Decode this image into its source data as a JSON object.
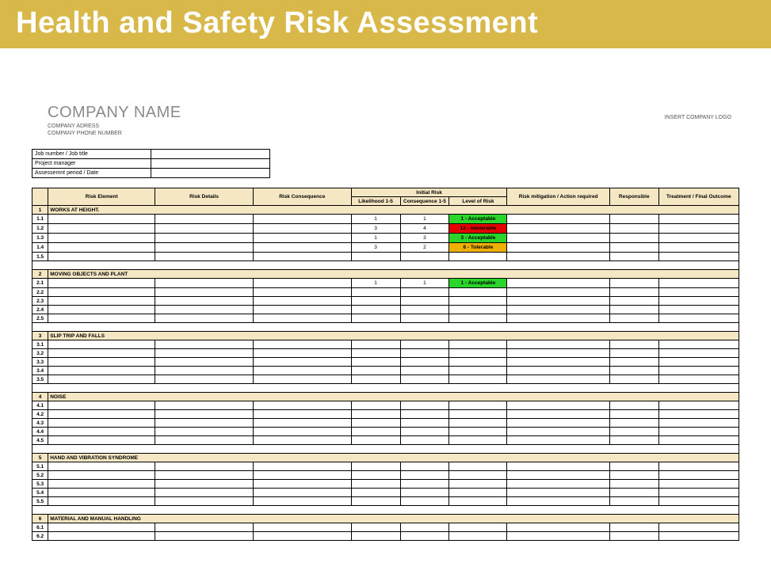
{
  "banner": "Health and Safety Risk Assessment",
  "company": {
    "name": "COMPANY NAME",
    "address": "COMPANY ADRESS",
    "phone": "COMPANY PHONE NUMBER"
  },
  "logo_hint": "INSERT COMPANY LOGO",
  "meta_rows": [
    {
      "label": "Job number / Job title",
      "value": ""
    },
    {
      "label": "Project manager",
      "value": ""
    },
    {
      "label": "Assessemnt period / Date",
      "value": ""
    }
  ],
  "header": {
    "num": "",
    "risk_element": "Risk Element",
    "risk_details": "Risk Details",
    "risk_consequence": "Risk Consequence",
    "initial_risk": "Initial Risk",
    "likelihood": "Likelihood 1-5",
    "consequence": "Consequence 1-5",
    "level": "Level of Risk",
    "mitigation": "Risk mitigation / Action required",
    "responsible": "Responsible",
    "outcome": "Treatment / Final Outcome"
  },
  "risk_levels": {
    "acceptable": {
      "label": "1 - Acceptable",
      "bg": "#2bd52b",
      "fg": "#000000"
    },
    "intolerable": {
      "label": "12 - Intolerable",
      "bg": "#e60000",
      "fg": "#000000"
    },
    "acceptable3": {
      "label": "3 - Acceptable",
      "bg": "#2bd52b",
      "fg": "#000000"
    },
    "tolerable6": {
      "label": "6 - Tolerable",
      "bg": "#f0b000",
      "fg": "#000000"
    }
  },
  "sections": [
    {
      "num": "1",
      "title": "WORKS AT HEIGHT.",
      "rows": [
        {
          "n": "1.1",
          "lk": "1",
          "cq": "1",
          "lvl": "acceptable"
        },
        {
          "n": "1.2",
          "lk": "3",
          "cq": "4",
          "lvl": "intolerable"
        },
        {
          "n": "1.3",
          "lk": "1",
          "cq": "3",
          "lvl": "acceptable3"
        },
        {
          "n": "1.4",
          "lk": "3",
          "cq": "2",
          "lvl": "tolerable6"
        },
        {
          "n": "1.5"
        }
      ]
    },
    {
      "num": "2",
      "title": "MOVING OBJECTS AND PLANT",
      "rows": [
        {
          "n": "2.1",
          "lk": "1",
          "cq": "1",
          "lvl": "acceptable"
        },
        {
          "n": "2.2"
        },
        {
          "n": "2.3"
        },
        {
          "n": "2.4"
        },
        {
          "n": "2.5"
        }
      ]
    },
    {
      "num": "3",
      "title": "SLIP TRIP AND FALLS",
      "rows": [
        {
          "n": "3.1"
        },
        {
          "n": "3.2"
        },
        {
          "n": "3.3"
        },
        {
          "n": "3.4"
        },
        {
          "n": "3.5"
        }
      ]
    },
    {
      "num": "4",
      "title": "NOISE",
      "rows": [
        {
          "n": "4.1"
        },
        {
          "n": "4.2"
        },
        {
          "n": "4.3"
        },
        {
          "n": "4.4"
        },
        {
          "n": "4.5"
        }
      ]
    },
    {
      "num": "5",
      "title": "HAND AND VIBRATION SYNDROME",
      "rows": [
        {
          "n": "5.1"
        },
        {
          "n": "5.2"
        },
        {
          "n": "5.3"
        },
        {
          "n": "5.4"
        },
        {
          "n": "5.5"
        }
      ]
    },
    {
      "num": "6",
      "title": "MATERIAL AND MANUAL HANDLING",
      "rows": [
        {
          "n": "6.1"
        },
        {
          "n": "6.2"
        }
      ]
    }
  ]
}
